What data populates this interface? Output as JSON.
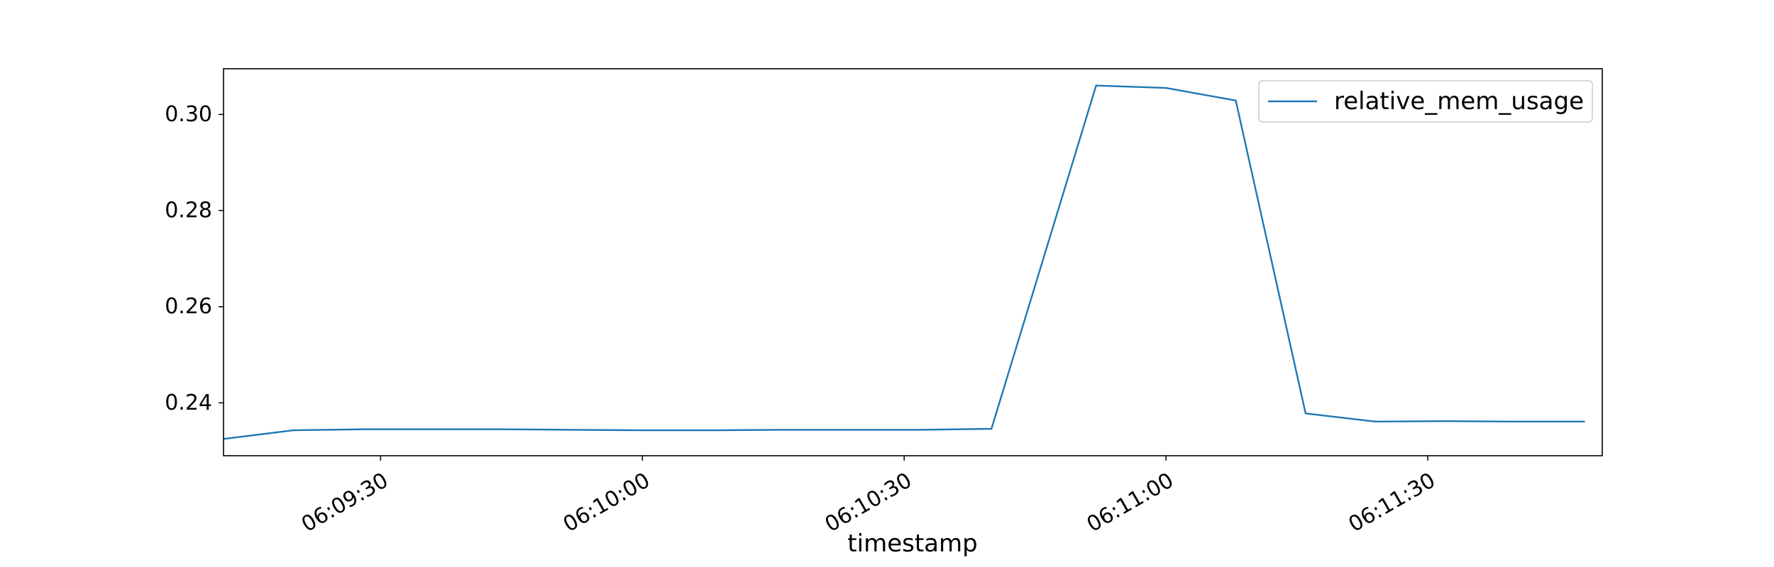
{
  "chart_data": {
    "type": "line",
    "title": "",
    "xlabel": "timestamp",
    "ylabel": "",
    "x": [
      "06:09:12",
      "06:09:20",
      "06:09:28",
      "06:09:36",
      "06:09:44",
      "06:09:52",
      "06:10:00",
      "06:10:08",
      "06:10:16",
      "06:10:24",
      "06:10:32",
      "06:10:40",
      "06:10:52",
      "06:11:00",
      "06:11:08",
      "06:11:16",
      "06:11:24",
      "06:11:32",
      "06:11:40",
      "06:11:48"
    ],
    "series": [
      {
        "name": "relative_mem_usage",
        "color": "#1f77b4",
        "values": [
          0.2325,
          0.2343,
          0.2345,
          0.2345,
          0.2345,
          0.2344,
          0.2343,
          0.2343,
          0.2344,
          0.2344,
          0.2344,
          0.2346,
          0.306,
          0.3055,
          0.3029,
          0.2378,
          0.2361,
          0.2362,
          0.2361,
          0.2361
        ]
      }
    ],
    "x_ticks": [
      "06:09:30",
      "06:10:00",
      "06:10:30",
      "06:11:00",
      "06:11:30"
    ],
    "y_ticks": [
      "0.24",
      "0.26",
      "0.28",
      "0.30"
    ],
    "xlim": [
      "06:09:12",
      "06:11:50"
    ],
    "ylim": [
      0.229,
      0.3095
    ],
    "grid": false,
    "legend_position": "top-right"
  }
}
